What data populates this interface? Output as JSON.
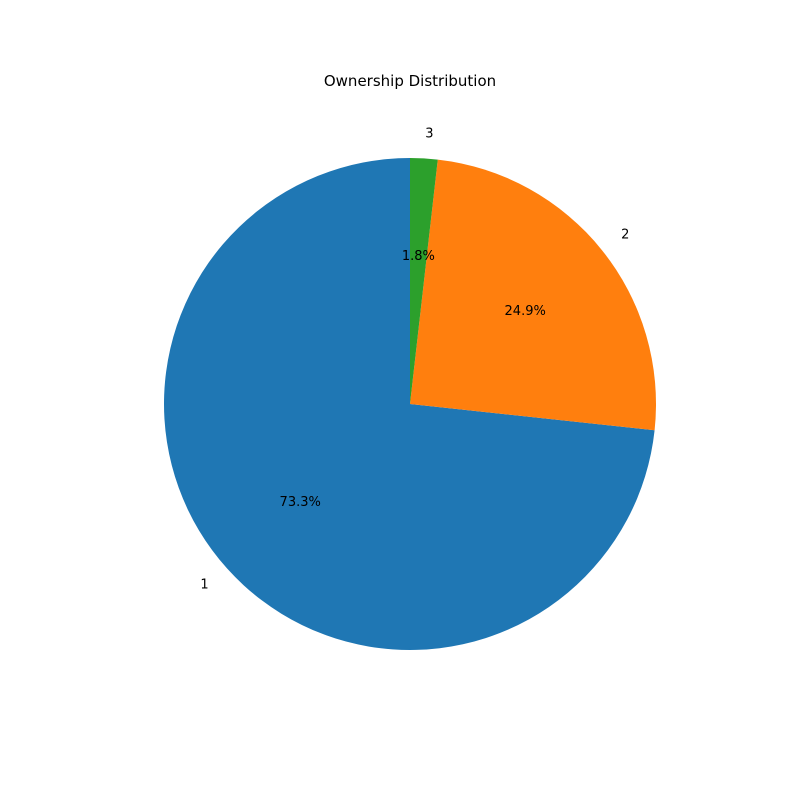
{
  "chart_data": {
    "type": "pie",
    "title": "Ownership Distribution",
    "start_angle": 90,
    "direction": "counterclockwise",
    "slices": [
      {
        "label": "1",
        "percent_label": "73.3%",
        "value": 73.3,
        "color": "#1f77b4"
      },
      {
        "label": "2",
        "percent_label": "24.9%",
        "value": 24.9,
        "color": "#ff7f0e"
      },
      {
        "label": "3",
        "percent_label": "1.8%",
        "value": 1.8,
        "color": "#2ca02c"
      }
    ]
  }
}
